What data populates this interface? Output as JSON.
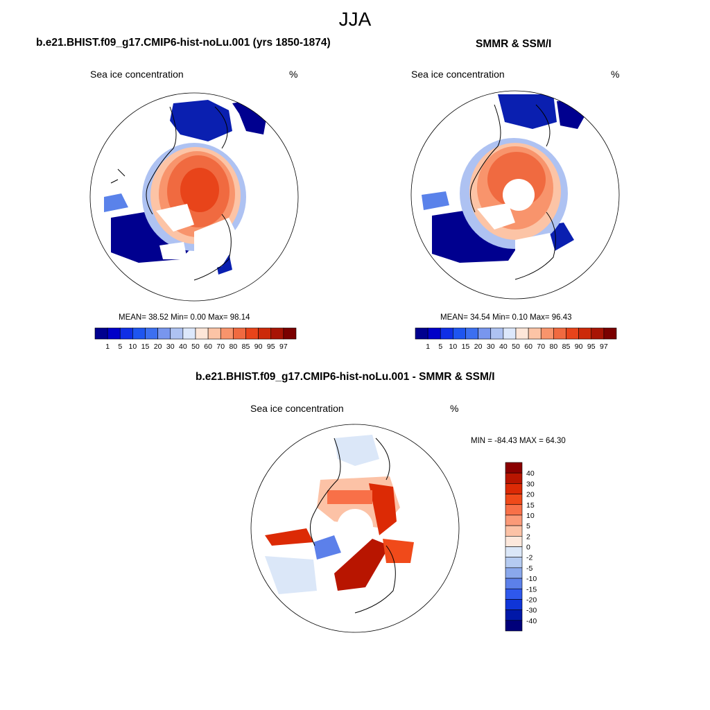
{
  "season": "JJA",
  "panels": [
    {
      "id": "model",
      "title": "b.e21.BHIST.f09_g17.CMIP6-hist-noLu.001 (yrs 1850-1874)",
      "variable": "Sea ice concentration",
      "units": "%",
      "stats": {
        "mean": "38.52",
        "min": "0.00",
        "max": "98.14"
      },
      "stats_text": "MEAN=  38.52  Min=   0.00  Max=  98.14"
    },
    {
      "id": "obs",
      "title": "SMMR & SSM/I",
      "variable": "Sea ice concentration",
      "units": "%",
      "stats": {
        "mean": "34.54",
        "min": "0.10",
        "max": "96.43"
      },
      "stats_text": "MEAN=  34.54  Min=   0.10  Max=  96.43"
    },
    {
      "id": "diff",
      "title": "b.e21.BHIST.f09_g17.CMIP6-hist-noLu.001 - SMMR & SSM/I",
      "variable": "Sea ice concentration",
      "units": "%",
      "stats": {
        "min": "-84.43",
        "max": "64.30"
      },
      "stats_text": "MIN = -84.43 MAX =  64.30"
    }
  ],
  "colorbar_horizontal": {
    "ticks": [
      "1",
      "5",
      "10",
      "15",
      "20",
      "30",
      "40",
      "50",
      "60",
      "70",
      "80",
      "85",
      "90",
      "95",
      "97"
    ],
    "colors": [
      "#00008f",
      "#0000c8",
      "#0f2fe6",
      "#1e55f0",
      "#3c6ff0",
      "#7896ee",
      "#aec2f2",
      "#dde8fb",
      "#fde6d8",
      "#fcc4a6",
      "#f8946c",
      "#f06a40",
      "#e8441a",
      "#cc2a0a",
      "#a81405",
      "#7a0000"
    ]
  },
  "colorbar_vertical": {
    "ticks": [
      "40",
      "30",
      "20",
      "15",
      "10",
      "5",
      "2",
      "0",
      "-2",
      "-5",
      "-10",
      "-15",
      "-20",
      "-30",
      "-40"
    ],
    "colors": [
      "#8a0000",
      "#b81500",
      "#dc2a05",
      "#f04a1a",
      "#f87048",
      "#fb9a78",
      "#fcc2a6",
      "#fde8dc",
      "#dbe7f8",
      "#b5cbf1",
      "#8aa8ec",
      "#5c80ea",
      "#2f58ec",
      "#0f35d8",
      "#0018a8",
      "#00007a"
    ]
  },
  "map_fields": {
    "model": "ice concentration: Arctic basin 90-98%, marginal seas 5-50%",
    "obs": "ice concentration: Arctic basin 80-95%, pole hole unobserved",
    "diff": "difference: model minus observations, -84 to +64%"
  }
}
